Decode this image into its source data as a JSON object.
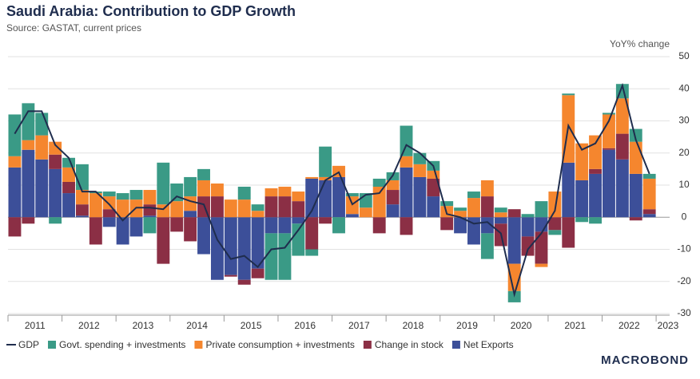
{
  "chart_data": {
    "type": "bar-line",
    "title": "Saudi Arabia: Contribution to GDP Growth",
    "subtitle": "Source: GASTAT, current prices",
    "y_label": "YoY% change",
    "brand": "MACROBOND",
    "categories": [
      "2011",
      null,
      null,
      null,
      "2012",
      null,
      null,
      null,
      "2013",
      null,
      null,
      null,
      "2014",
      null,
      null,
      null,
      "2015",
      null,
      null,
      null,
      "2016",
      null,
      null,
      null,
      "2017",
      null,
      null,
      null,
      "2018",
      null,
      null,
      null,
      "2019",
      null,
      null,
      null,
      "2020",
      null,
      null,
      null,
      "2021",
      null,
      null,
      null,
      "2022",
      null,
      null,
      null,
      "2023"
    ],
    "ylim": [
      -30,
      50
    ],
    "yticks": [
      -30,
      -20,
      -10,
      0,
      10,
      20,
      30,
      40,
      50
    ],
    "grid": true,
    "series": [
      {
        "name": "GDP",
        "type": "line",
        "color": "#1f2d4e",
        "values": [
          26,
          33,
          33,
          22.5,
          18.5,
          8,
          8,
          4,
          -1,
          3,
          3,
          2.5,
          6.5,
          5,
          4,
          -7,
          -13,
          -12,
          -15.5,
          -10,
          -9.5,
          -4,
          2,
          11.5,
          14,
          4,
          7,
          7.5,
          13,
          22.5,
          20,
          16,
          1,
          0,
          -2,
          -1.5,
          -5,
          -24,
          -10,
          -5,
          2,
          28.5,
          21,
          23,
          30,
          41,
          24,
          13.5,
          null
        ]
      },
      {
        "name": "Govt. spending + investments",
        "type": "bar",
        "color": "#3a9a86",
        "values": [
          13,
          11.5,
          7,
          -2,
          3,
          8,
          0.5,
          1.5,
          2,
          3,
          -5,
          13,
          5.5,
          6,
          3.5,
          0,
          0,
          4,
          2,
          -14.5,
          -14.5,
          -10,
          -2,
          9.5,
          -5,
          1,
          4.5,
          2.5,
          2.5,
          9.5,
          3.5,
          3,
          1.5,
          1,
          2,
          -8,
          1.5,
          -3.5,
          1,
          5,
          -1.5,
          0.5,
          -1.5,
          -2,
          0.5,
          4.5,
          4,
          1.5,
          null
        ]
      },
      {
        "name": "Private consumption + investments",
        "type": "bar",
        "color": "#f5862e",
        "values": [
          3.5,
          3,
          7.5,
          4,
          4.5,
          4.5,
          7.5,
          4,
          5.5,
          5.5,
          4.5,
          4,
          5,
          4.5,
          5,
          4,
          5.5,
          5.5,
          2,
          2.5,
          3,
          3,
          0.5,
          1,
          3.5,
          5.5,
          3,
          9.5,
          3,
          3.5,
          4,
          2.5,
          3.5,
          2,
          6,
          5,
          1.5,
          -8.5,
          0,
          -1,
          8,
          21,
          11.5,
          10.5,
          10.5,
          11,
          10,
          9.5,
          null
        ]
      },
      {
        "name": "Change in stock",
        "type": "bar",
        "color": "#8b2f45",
        "values": [
          -6,
          -2,
          0,
          4.5,
          3.5,
          3.5,
          -8.5,
          2.5,
          0,
          0,
          3.5,
          -14.5,
          -4.5,
          -7.5,
          6.5,
          6.5,
          -0.5,
          -1.5,
          -3,
          6.5,
          6.5,
          5,
          -10,
          -2,
          0,
          0,
          0,
          -5,
          4.5,
          -5.5,
          0,
          5.5,
          -4,
          0,
          0,
          6.5,
          -7,
          2.5,
          -6,
          -10,
          -4,
          -9.5,
          0,
          1.5,
          0.5,
          8,
          -1,
          1.5,
          null
        ]
      },
      {
        "name": "Net Exports",
        "type": "bar",
        "color": "#3c4f99",
        "values": [
          15.5,
          21,
          18,
          15,
          7.5,
          0.5,
          0,
          -3,
          -8.5,
          -6,
          0.5,
          0,
          0,
          2,
          -11.5,
          -19.5,
          -18,
          -19.5,
          -16,
          -5,
          -5,
          -2,
          12,
          11.5,
          12.5,
          1,
          0,
          0,
          4,
          15.5,
          12.5,
          6.5,
          0,
          -5,
          -8.5,
          -5,
          -2,
          -14.5,
          -6,
          -4.5,
          0,
          17,
          11.5,
          13.5,
          21,
          18,
          13.5,
          1,
          null
        ]
      }
    ]
  }
}
